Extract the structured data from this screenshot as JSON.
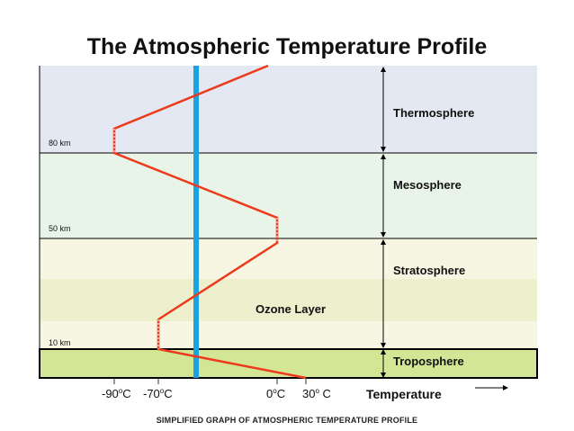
{
  "title": "The Atmospheric Temperature Profile",
  "caption": "SIMPLIFIED GRAPH OF ATMOSPHERIC TEMPERATURE PROFILE",
  "layers": [
    {
      "name": "Thermosphere",
      "color": "#e4e8f2"
    },
    {
      "name": "Mesosphere",
      "color": "#e8f4e8"
    },
    {
      "name": "Stratosphere",
      "color": "#f6f6e2"
    },
    {
      "name": "Troposphere",
      "color": "#d3e696"
    }
  ],
  "ozone": {
    "label": "Ozone Layer",
    "color": "#eef0cd"
  },
  "altitudes": [
    {
      "label": "80 km"
    },
    {
      "label": "50 km"
    },
    {
      "label": "10 km"
    }
  ],
  "temperatures": [
    {
      "value": "-90",
      "sup": "o",
      "unit": "C"
    },
    {
      "value": "-70",
      "sup": "o",
      "unit": "C"
    },
    {
      "value": "0",
      "sup": "o",
      "unit": "C"
    },
    {
      "value": "30",
      "sup": "o",
      "unit": " C"
    }
  ],
  "x_axis_label": "Temperature",
  "colors": {
    "profile": "#ee3a1c",
    "freezing_line": "#1aa3e0",
    "boundary": "#000000"
  }
}
